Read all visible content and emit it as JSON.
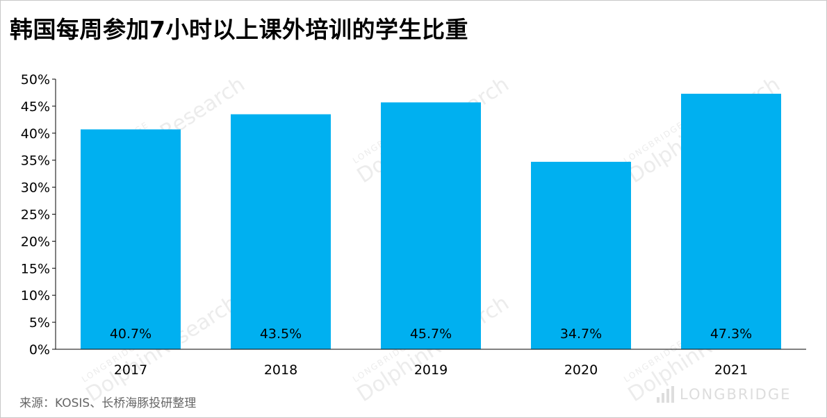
{
  "title": "韩国每周参加7小时以上课外培训的学生比重",
  "source": "来源：KOSIS、长桥海豚投研整理",
  "brand": "LONGBRIDGE",
  "colors": {
    "bar": "#00b0f0",
    "axis": "#000000",
    "text": "#000000"
  },
  "chart_data": {
    "type": "bar",
    "title": "韩国每周参加7小时以上课外培训的学生比重",
    "xlabel": "",
    "ylabel": "",
    "categories": [
      "2017",
      "2018",
      "2019",
      "2020",
      "2021"
    ],
    "values": [
      40.7,
      43.5,
      45.7,
      34.7,
      47.3
    ],
    "data_labels": [
      "40.7%",
      "43.5%",
      "45.7%",
      "34.7%",
      "47.3%"
    ],
    "ylim": [
      0,
      50
    ],
    "y_ticks": [
      "0%",
      "5%",
      "10%",
      "15%",
      "20%",
      "25%",
      "30%",
      "35%",
      "40%",
      "45%",
      "50%"
    ],
    "y_tick_values": [
      0,
      5,
      10,
      15,
      20,
      25,
      30,
      35,
      40,
      45,
      50
    ],
    "grid": false,
    "legend": "none"
  }
}
